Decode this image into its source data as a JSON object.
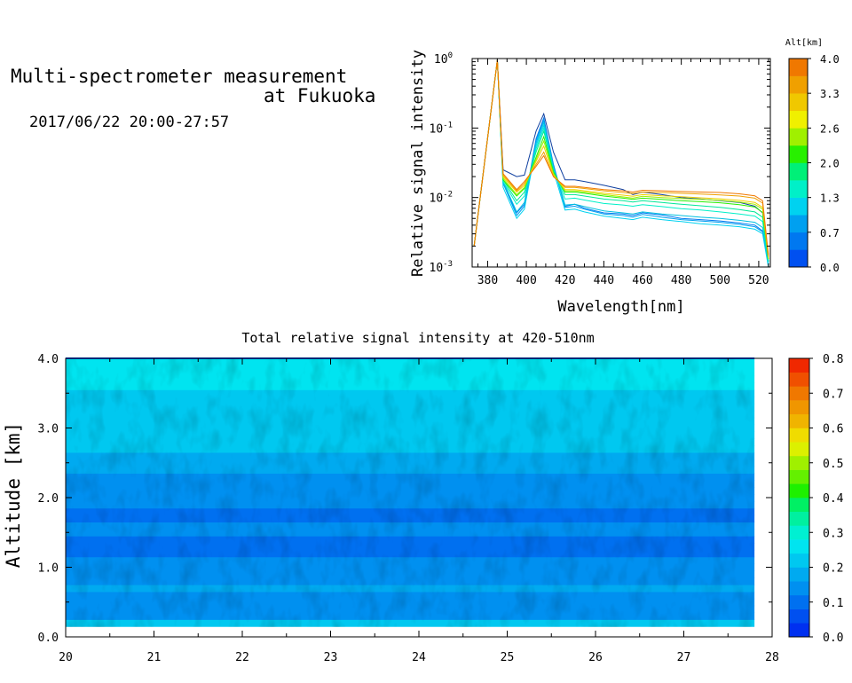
{
  "header": {
    "title_line1": "Multi-spectrometer measurement",
    "title_line2": "at Fukuoka",
    "subtitle": "2017/06/22 20:00-27:57"
  },
  "chart_data": [
    {
      "type": "line",
      "title": "",
      "xlabel": "Wavelength[nm]",
      "ylabel": "Relative signal intensity",
      "xlim": [
        372,
        526
      ],
      "ylim": [
        0.001,
        1
      ],
      "y_scale": "log",
      "x_ticks": [
        380,
        400,
        420,
        440,
        460,
        480,
        500,
        520
      ],
      "y_ticks": [
        {
          "value": 0.001,
          "base": "10",
          "exp": "-3"
        },
        {
          "value": 0.01,
          "base": "10",
          "exp": "-2"
        },
        {
          "value": 0.1,
          "base": "10",
          "exp": "-1"
        },
        {
          "value": 1,
          "base": "10",
          "exp": "0"
        }
      ],
      "colorbar": {
        "label": "Alt[km]",
        "tick_labels": [
          "4.0",
          "3.3",
          "2.6",
          "2.0",
          "1.3",
          "0.7",
          "0.0"
        ],
        "colors": [
          "#0050f0",
          "#0078f0",
          "#00a0f0",
          "#00d2f0",
          "#00f0c8",
          "#00f078",
          "#28f000",
          "#a0f000",
          "#f0f000",
          "#f0c800",
          "#f0a000",
          "#f07800"
        ]
      },
      "x": [
        373,
        385,
        388,
        395,
        399,
        405,
        409,
        414,
        420,
        425,
        430,
        440,
        450,
        455,
        460,
        470,
        480,
        490,
        500,
        510,
        518,
        522,
        525
      ],
      "series": [
        {
          "color": "#1040a0",
          "values": [
            0.002,
            0.95,
            0.025,
            0.02,
            0.021,
            0.09,
            0.16,
            0.045,
            0.018,
            0.018,
            0.017,
            0.015,
            0.013,
            0.011,
            0.012,
            0.011,
            0.01,
            0.0095,
            0.009,
            0.0085,
            0.0075,
            0.006,
            0.0012
          ]
        },
        {
          "color": "#0078f0",
          "values": [
            0.002,
            0.95,
            0.016,
            0.006,
            0.008,
            0.07,
            0.14,
            0.03,
            0.0075,
            0.008,
            0.007,
            0.006,
            0.0058,
            0.0055,
            0.006,
            0.0056,
            0.005,
            0.0048,
            0.0046,
            0.0043,
            0.004,
            0.0033,
            0.0011
          ]
        },
        {
          "color": "#00a0f0",
          "values": [
            0.002,
            0.95,
            0.016,
            0.0055,
            0.0075,
            0.065,
            0.13,
            0.028,
            0.0072,
            0.0075,
            0.0068,
            0.0058,
            0.0055,
            0.0052,
            0.0057,
            0.0052,
            0.0048,
            0.0046,
            0.0044,
            0.0041,
            0.0038,
            0.0032,
            0.0011
          ]
        },
        {
          "color": "#00c0e0",
          "values": [
            0.002,
            0.95,
            0.017,
            0.0062,
            0.0085,
            0.06,
            0.12,
            0.028,
            0.0078,
            0.008,
            0.0074,
            0.0064,
            0.006,
            0.0058,
            0.0062,
            0.0058,
            0.0055,
            0.0052,
            0.005,
            0.0047,
            0.0044,
            0.0037,
            0.0011
          ]
        },
        {
          "color": "#00d2f0",
          "values": [
            0.002,
            0.95,
            0.014,
            0.005,
            0.0068,
            0.055,
            0.11,
            0.024,
            0.0066,
            0.0068,
            0.0062,
            0.0054,
            0.005,
            0.0048,
            0.0052,
            0.0048,
            0.0045,
            0.0042,
            0.004,
            0.0038,
            0.0035,
            0.003,
            0.001
          ]
        },
        {
          "color": "#00f0c8",
          "values": [
            0.002,
            0.95,
            0.017,
            0.008,
            0.0105,
            0.05,
            0.1,
            0.025,
            0.0095,
            0.0098,
            0.0092,
            0.0082,
            0.0078,
            0.0075,
            0.0079,
            0.0074,
            0.0069,
            0.0066,
            0.0062,
            0.0058,
            0.0054,
            0.0045,
            0.0012
          ]
        },
        {
          "color": "#00e896",
          "values": [
            0.002,
            0.95,
            0.018,
            0.009,
            0.012,
            0.045,
            0.09,
            0.024,
            0.011,
            0.011,
            0.0105,
            0.0095,
            0.009,
            0.0086,
            0.009,
            0.0085,
            0.008,
            0.0076,
            0.0072,
            0.0067,
            0.0062,
            0.0052,
            0.0012
          ]
        },
        {
          "color": "#28f000",
          "values": [
            0.002,
            0.95,
            0.018,
            0.0105,
            0.0135,
            0.038,
            0.075,
            0.023,
            0.012,
            0.012,
            0.0115,
            0.0105,
            0.0098,
            0.0094,
            0.0098,
            0.0094,
            0.009,
            0.0087,
            0.0084,
            0.0079,
            0.0073,
            0.0061,
            0.0013
          ]
        },
        {
          "color": "#a0f000",
          "values": [
            0.002,
            0.95,
            0.019,
            0.011,
            0.014,
            0.035,
            0.065,
            0.022,
            0.0125,
            0.0125,
            0.012,
            0.011,
            0.0102,
            0.0098,
            0.0104,
            0.01,
            0.0097,
            0.0094,
            0.0091,
            0.0086,
            0.008,
            0.0068,
            0.0013
          ]
        },
        {
          "color": "#f0d000",
          "values": [
            0.002,
            0.95,
            0.02,
            0.012,
            0.015,
            0.033,
            0.055,
            0.021,
            0.013,
            0.013,
            0.0125,
            0.0115,
            0.0108,
            0.0104,
            0.011,
            0.0106,
            0.0103,
            0.0099,
            0.0096,
            0.0091,
            0.0085,
            0.0072,
            0.0014
          ]
        },
        {
          "color": "#f0a000",
          "values": [
            0.002,
            0.95,
            0.021,
            0.0125,
            0.016,
            0.03,
            0.045,
            0.02,
            0.014,
            0.014,
            0.0135,
            0.0125,
            0.0118,
            0.0114,
            0.012,
            0.0118,
            0.0115,
            0.0112,
            0.0109,
            0.0105,
            0.0098,
            0.0083,
            0.0014
          ]
        },
        {
          "color": "#f07800",
          "values": [
            0.002,
            0.95,
            0.022,
            0.013,
            0.017,
            0.028,
            0.04,
            0.02,
            0.0145,
            0.0145,
            0.014,
            0.013,
            0.0125,
            0.012,
            0.0127,
            0.0125,
            0.0122,
            0.012,
            0.0118,
            0.0113,
            0.0106,
            0.009,
            0.0015
          ]
        }
      ]
    },
    {
      "type": "heatmap",
      "title": "Total relative signal intensity at 420-510nm",
      "xlabel": "",
      "ylabel": "Altitude [km]",
      "xlim": [
        20,
        28
      ],
      "ylim": [
        0,
        4
      ],
      "x_ticks": [
        "20",
        "21",
        "22",
        "23",
        "24",
        "25",
        "26",
        "27",
        "28"
      ],
      "y_ticks": [
        "0.0",
        "1.0",
        "2.0",
        "3.0",
        "4.0"
      ],
      "data_extent": {
        "x": [
          20,
          27.8
        ],
        "y": [
          0.15,
          4.0
        ]
      },
      "profile": {
        "altitudes": [
          0.15,
          0.25,
          0.35,
          0.45,
          0.55,
          0.65,
          0.75,
          0.85,
          0.95,
          1.05,
          1.15,
          1.25,
          1.35,
          1.45,
          1.55,
          1.65,
          1.75,
          1.85,
          1.95,
          2.05,
          2.15,
          2.25,
          2.35,
          2.45,
          2.55,
          2.65,
          2.75,
          2.85,
          2.95,
          3.05,
          3.15,
          3.25,
          3.35,
          3.45,
          3.55,
          3.65,
          3.75,
          3.85,
          3.95
        ],
        "values": [
          0.2,
          0.15,
          0.16,
          0.12,
          0.15,
          0.17,
          0.16,
          0.15,
          0.14,
          0.13,
          0.11,
          0.1,
          0.11,
          0.12,
          0.12,
          0.11,
          0.11,
          0.12,
          0.13,
          0.14,
          0.15,
          0.16,
          0.17,
          0.18,
          0.19,
          0.2,
          0.2,
          0.21,
          0.21,
          0.21,
          0.22,
          0.22,
          0.23,
          0.23,
          0.24,
          0.25,
          0.26,
          0.27,
          0.27
        ]
      },
      "colorbar": {
        "range": [
          0,
          0.8
        ],
        "tick_labels": [
          "0.0",
          "0.1",
          "0.2",
          "0.3",
          "0.4",
          "0.5",
          "0.6",
          "0.7",
          "0.8"
        ],
        "colors": [
          "#0030f0",
          "#0050f0",
          "#0070f0",
          "#0090f0",
          "#00aaf0",
          "#00c8f0",
          "#00e4f0",
          "#00f0d2",
          "#00f0a0",
          "#00f064",
          "#1ef000",
          "#64f000",
          "#a0f000",
          "#dcf000",
          "#f0dc00",
          "#f0b400",
          "#f09600",
          "#f07800",
          "#f05000",
          "#f02800"
        ]
      }
    }
  ]
}
